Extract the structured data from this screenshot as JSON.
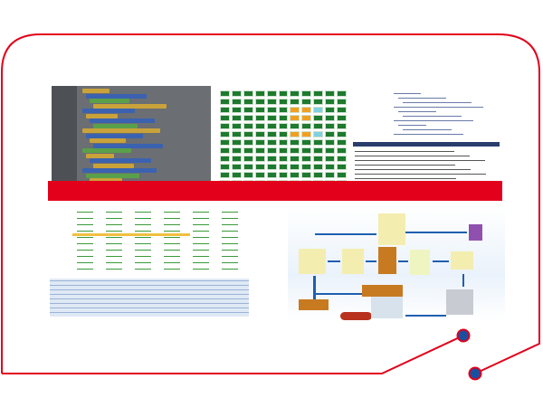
{
  "colors": {
    "frame": "#e2001a",
    "band": "#e2001a",
    "dot": "#1a4fa0",
    "grid_cell": "#1e7a2e",
    "legend": [
      "#1e7a2e",
      "#f0a020",
      "#7fd0e0",
      "#bfe8f0",
      "#e84020"
    ]
  },
  "images": [
    {
      "name": "visual-block-programming-screenshot"
    },
    {
      "name": "status-grid-screenshot"
    },
    {
      "name": "code-editor-screenshot"
    },
    {
      "name": "data-table-screenshot"
    },
    {
      "name": "warehouse-flow-diagram"
    }
  ]
}
